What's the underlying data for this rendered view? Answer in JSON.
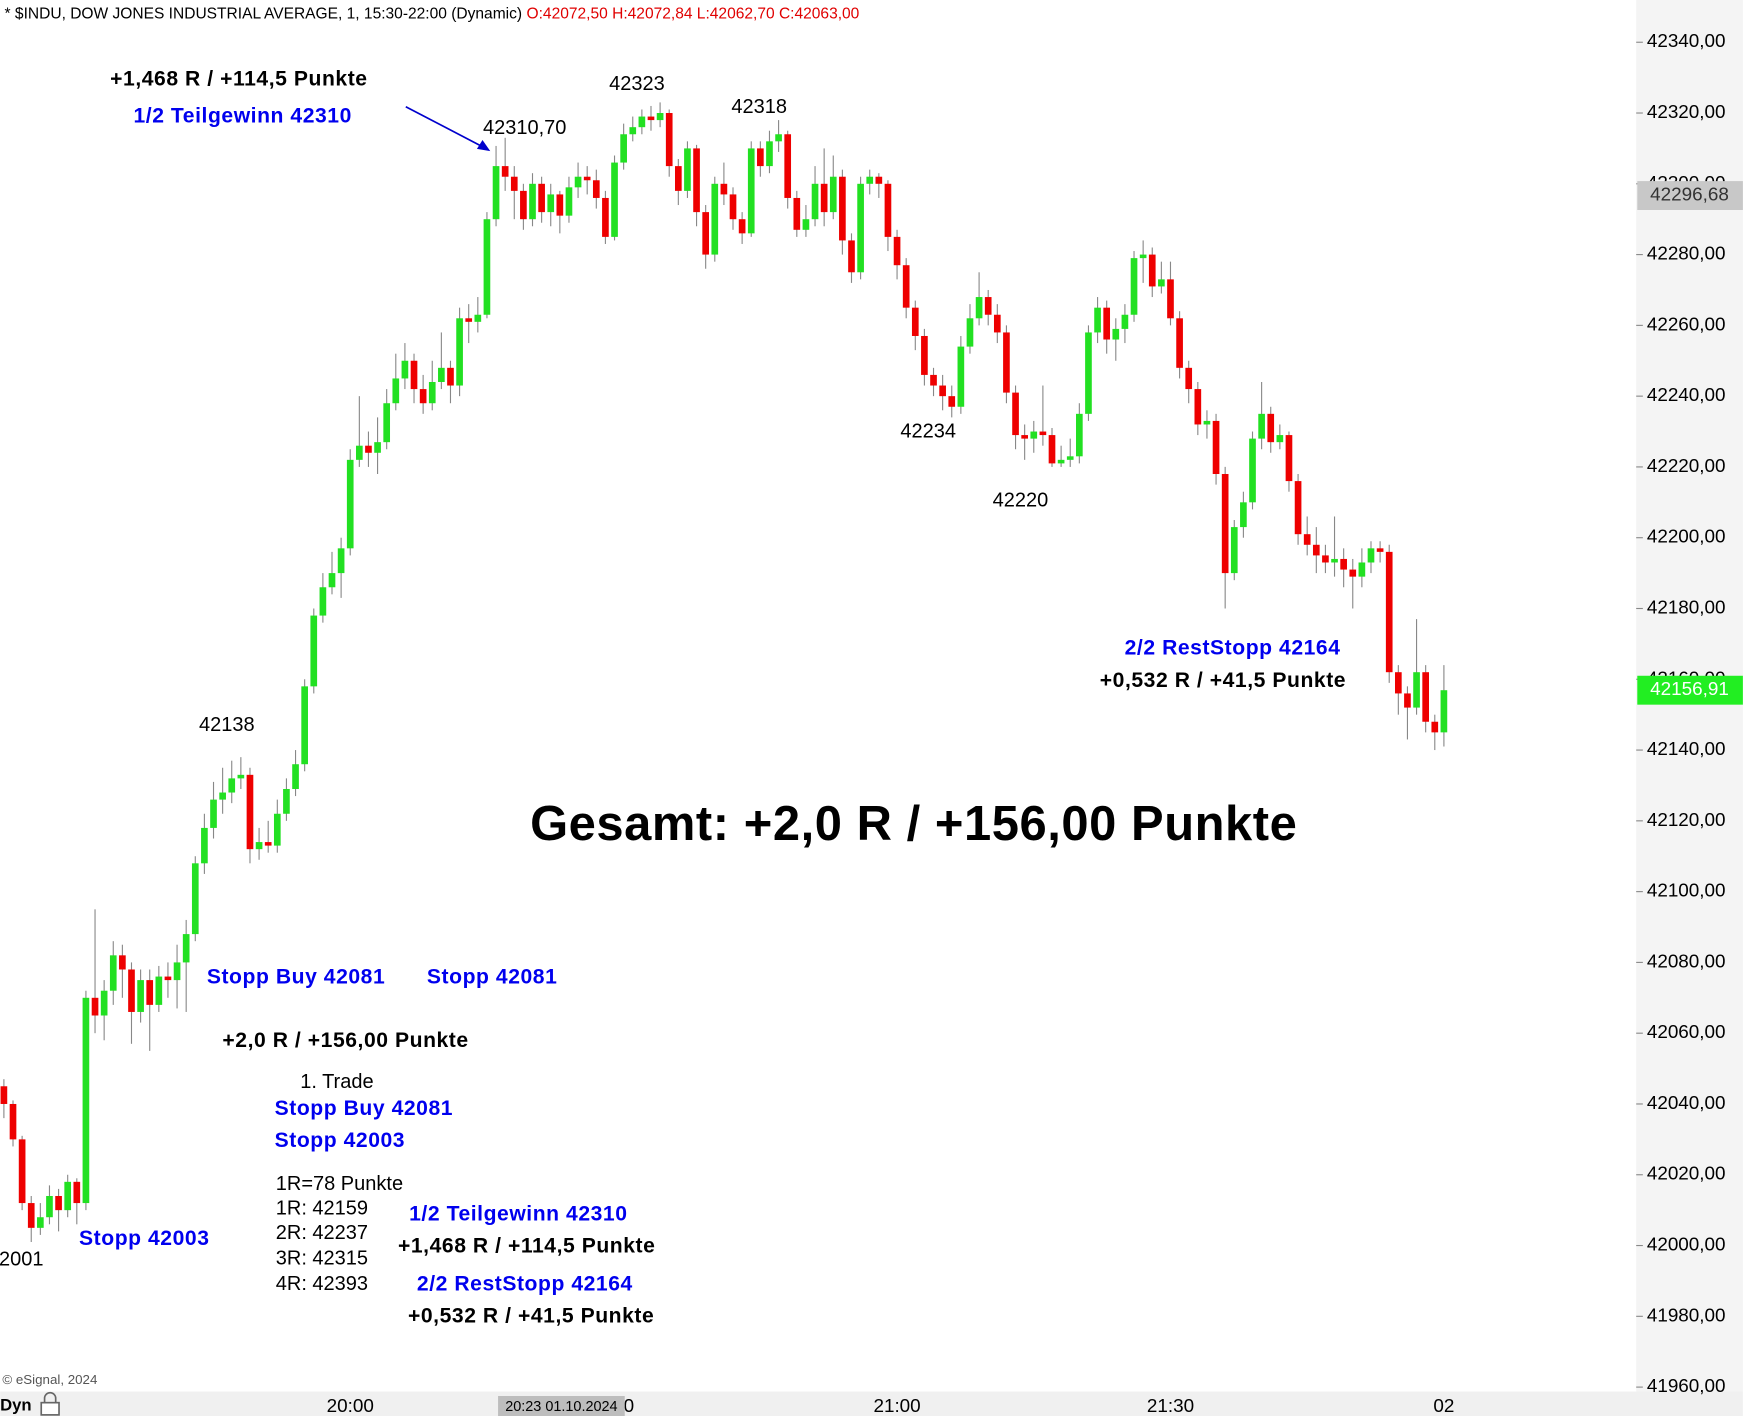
{
  "chart_data": {
    "type": "candlestick",
    "title": "* $INDU, DOW JONES INDUSTRIAL AVERAGE, 1, 15:30-22:00 (Dynamic)",
    "ohlc_label": "O:42072,50 H:42072,84 L:42062,70 C:42063,00",
    "up_color": "#22e022",
    "down_color": "#ee0000",
    "ylim": [
      41960,
      42340
    ],
    "yticks": [
      {
        "value": 42340,
        "label": "42340,00"
      },
      {
        "value": 42320,
        "label": "42320,00"
      },
      {
        "value": 42300,
        "label": "42300,00"
      },
      {
        "value": 42280,
        "label": "42280,00"
      },
      {
        "value": 42260,
        "label": "42260,00"
      },
      {
        "value": 42240,
        "label": "42240,00"
      },
      {
        "value": 42220,
        "label": "42220,00"
      },
      {
        "value": 42200,
        "label": "42200,00"
      },
      {
        "value": 42180,
        "label": "42180,00"
      },
      {
        "value": 42160,
        "label": "42160,00"
      },
      {
        "value": 42140,
        "label": "42140,00"
      },
      {
        "value": 42120,
        "label": "42120,00"
      },
      {
        "value": 42100,
        "label": "42100,00"
      },
      {
        "value": 42080,
        "label": "42080,00"
      },
      {
        "value": 42060,
        "label": "42060,00"
      },
      {
        "value": 42040,
        "label": "42040,00"
      },
      {
        "value": 42020,
        "label": "42020,00"
      },
      {
        "value": 42000,
        "label": "42000,00"
      },
      {
        "value": 41980,
        "label": "41980,00"
      },
      {
        "value": 41960,
        "label": "41960,00"
      }
    ],
    "categories": [
      null,
      null,
      null,
      null,
      null,
      null,
      null,
      null,
      null,
      null,
      null,
      null,
      null,
      null,
      null,
      null,
      null,
      null,
      null,
      null,
      null,
      null,
      null,
      null,
      null,
      null,
      null,
      null,
      null,
      null,
      null,
      null,
      null,
      null,
      null,
      null,
      null,
      null,
      "20:00",
      null,
      null,
      null,
      null,
      null,
      null,
      null,
      null,
      null,
      null,
      null,
      null,
      null,
      null,
      null,
      null,
      null,
      null,
      null,
      null,
      null,
      null,
      null,
      null,
      null,
      null,
      null,
      null,
      null,
      "30",
      null,
      null,
      null,
      null,
      null,
      null,
      null,
      null,
      null,
      null,
      null,
      null,
      null,
      null,
      null,
      null,
      null,
      null,
      null,
      null,
      null,
      null,
      null,
      null,
      null,
      null,
      null,
      null,
      null,
      "21:00",
      null,
      null,
      null,
      null,
      null,
      null,
      null,
      null,
      null,
      null,
      null,
      null,
      null,
      null,
      null,
      null,
      null,
      null,
      null,
      null,
      null,
      null,
      null,
      null,
      null,
      null,
      null,
      null,
      null,
      "21:30",
      null,
      null,
      null,
      null,
      null,
      null,
      null,
      null,
      null,
      null,
      null,
      null,
      null,
      null,
      null,
      null,
      null,
      null,
      null,
      null,
      null,
      null,
      null,
      null,
      null,
      null,
      null,
      null,
      null,
      "02"
    ],
    "open": [
      42045,
      42040,
      42030,
      42012,
      42005,
      42008,
      42014,
      42010,
      42018,
      42012,
      42070,
      42065,
      42072,
      42082,
      42078,
      42066,
      42075,
      42068,
      42076,
      42075,
      42080,
      42088,
      42108,
      42118,
      42126,
      42128,
      42132,
      42133,
      42112,
      42114,
      42113,
      42122,
      42129,
      42136,
      42158,
      42178,
      42186,
      42190,
      42197,
      42222,
      42226,
      42224,
      42227,
      42238,
      42245,
      42250,
      42242,
      42238,
      42244,
      42248,
      42243,
      42262,
      42261,
      42263,
      42290,
      42305,
      42302,
      42298,
      42290,
      42300,
      42292,
      42297,
      42291,
      42299,
      42302,
      42301,
      42296,
      42285,
      42306,
      42314,
      42316,
      42319,
      42318,
      42320,
      42305,
      42298,
      42310,
      42292,
      42280,
      42300,
      42297,
      42290,
      42286,
      42310,
      42305,
      42312,
      42314,
      42296,
      42287,
      42290,
      42300,
      42292,
      42302,
      42284,
      42275,
      42300,
      42302,
      42300,
      42285,
      42277,
      42265,
      42257,
      42246,
      42243,
      42240,
      42237,
      42254,
      42262,
      42268,
      42263,
      42258,
      42241,
      42229,
      42228,
      42230,
      42229,
      42221,
      42222,
      42223,
      42235,
      42258,
      42265,
      42256,
      42259,
      42263,
      42279,
      42280,
      42271,
      42273,
      42262,
      42248,
      42242,
      42232,
      42233,
      42218,
      42190,
      42203,
      42210,
      42228,
      42235,
      42227,
      42229,
      42216,
      42201,
      42198,
      42195,
      42193,
      42194,
      42191,
      42189,
      42193,
      42197,
      42196,
      42162,
      42156,
      42152,
      42162,
      42148,
      42145
    ],
    "high": [
      42047,
      42041,
      42031,
      42014,
      42012,
      42017,
      42016,
      42020,
      42019,
      42072,
      42095,
      42075,
      42086,
      42085,
      42080,
      42078,
      42078,
      42079,
      42080,
      42085,
      42092,
      42110,
      42122,
      42131,
      42135,
      42137,
      42138,
      42135,
      42118,
      42120,
      42126,
      42132,
      42140,
      42160,
      42180,
      42190,
      42196,
      42200,
      42225,
      42240,
      42230,
      42234,
      42242,
      42252,
      42255,
      42252,
      42246,
      42250,
      42258,
      42250,
      42265,
      42266,
      42268,
      42292,
      42310.7,
      42313,
      42305,
      42300,
      42303,
      42302,
      42300,
      42298,
      42302,
      42306,
      42305,
      42304,
      42298,
      42308,
      42317,
      42319,
      42321,
      42322,
      42323,
      42321,
      42307,
      42312,
      42311,
      42294,
      42302,
      42306,
      42299,
      42292,
      42312,
      42312,
      42315,
      42318,
      42315,
      42298,
      42294,
      42305,
      42310,
      42308,
      42304,
      42286,
      42302,
      42304,
      42303,
      42301,
      42287,
      42279,
      42267,
      42259,
      42248,
      42246,
      42243,
      42257,
      42266,
      42275,
      42270,
      42266,
      42260,
      42243,
      42232,
      42233,
      42243,
      42231,
      42226,
      42228,
      42238,
      42260,
      42268,
      42267,
      42262,
      42266,
      42281,
      42284,
      42282,
      42278,
      42278,
      42264,
      42250,
      42244,
      42236,
      42235,
      42220,
      42205,
      42213,
      42230,
      42244,
      42237,
      42232,
      42230,
      42218,
      42206,
      42203,
      42198,
      42206,
      42197,
      42194,
      42197,
      42199,
      42199,
      42198,
      42164,
      42158,
      42177,
      42164,
      42150,
      42164
    ],
    "low": [
      42036,
      42028,
      42010,
      42001,
      42003,
      42006,
      42004,
      42008,
      42006,
      42010,
      42060,
      42058,
      42068,
      42070,
      42057,
      42063,
      42055,
      42066,
      42070,
      42067,
      42066,
      42086,
      42105,
      42115,
      42122,
      42125,
      42129,
      42108,
      42109,
      42111,
      42111,
      42120,
      42127,
      42134,
      42156,
      42176,
      42184,
      42183,
      42195,
      42220,
      42220,
      42218,
      42225,
      42236,
      42242,
      42238,
      42235,
      42236,
      42242,
      42238,
      42240,
      42255,
      42258,
      42262,
      42288,
      42298,
      42290,
      42287,
      42288,
      42289,
      42288,
      42286,
      42289,
      42296,
      42297,
      42293,
      42283,
      42284,
      42304,
      42312,
      42314,
      42315,
      42316,
      42302,
      42294,
      42296,
      42288,
      42276,
      42278,
      42294,
      42287,
      42283,
      42285,
      42302,
      42303,
      42309,
      42293,
      42285,
      42285,
      42288,
      42288,
      42290,
      42280,
      42272,
      42273,
      42297,
      42296,
      42281,
      42273,
      42262,
      42253,
      42243,
      42240,
      42236,
      42234,
      42235,
      42252,
      42260,
      42260,
      42255,
      42238,
      42225,
      42222,
      42224,
      42226,
      42220,
      42220,
      42220,
      42221,
      42233,
      42255,
      42252,
      42250,
      42255,
      42261,
      42272,
      42268,
      42269,
      42260,
      42245,
      42238,
      42229,
      42228,
      42215,
      42180,
      42188,
      42200,
      42208,
      42225,
      42224,
      42225,
      42213,
      42198,
      42195,
      42190,
      42190,
      42189,
      42186,
      42180,
      42186,
      42190,
      42193,
      42159,
      42150,
      42143,
      42150,
      42145,
      42140,
      42141
    ],
    "close": [
      42040,
      42030,
      42012,
      42005,
      42008,
      42014,
      42010,
      42018,
      42012,
      42070,
      42065,
      42072,
      42082,
      42078,
      42066,
      42075,
      42068,
      42076,
      42075,
      42080,
      42088,
      42108,
      42118,
      42126,
      42128,
      42132,
      42133,
      42112,
      42114,
      42113,
      42122,
      42129,
      42136,
      42158,
      42178,
      42186,
      42190,
      42197,
      42222,
      42226,
      42224,
      42227,
      42238,
      42245,
      42250,
      42242,
      42238,
      42244,
      42248,
      42243,
      42262,
      42261,
      42263,
      42290,
      42305,
      42302,
      42298,
      42290,
      42300,
      42292,
      42297,
      42291,
      42299,
      42302,
      42301,
      42296,
      42285,
      42306,
      42314,
      42316,
      42319,
      42318,
      42320,
      42305,
      42298,
      42310,
      42292,
      42280,
      42300,
      42297,
      42290,
      42286,
      42310,
      42305,
      42312,
      42314,
      42296,
      42287,
      42290,
      42300,
      42292,
      42302,
      42284,
      42275,
      42300,
      42302,
      42300,
      42285,
      42277,
      42265,
      42257,
      42246,
      42243,
      42240,
      42237,
      42254,
      42262,
      42268,
      42263,
      42258,
      42241,
      42229,
      42228,
      42230,
      42229,
      42221,
      42222,
      42223,
      42235,
      42258,
      42265,
      42256,
      42259,
      42263,
      42279,
      42280,
      42271,
      42273,
      42262,
      42248,
      42242,
      42232,
      42233,
      42218,
      42190,
      42203,
      42210,
      42228,
      42235,
      42227,
      42229,
      42216,
      42201,
      42198,
      42195,
      42193,
      42194,
      42191,
      42189,
      42193,
      42197,
      42196,
      42162,
      42156,
      42152,
      42162,
      42148,
      42145,
      42156.91
    ],
    "price_markers": [
      {
        "value": 42296.68,
        "label": "42296,68",
        "color": "#c8c8c8"
      },
      {
        "value": 42156.91,
        "label": "42156,91",
        "color": "#22ee22"
      }
    ],
    "crosshair_label": "20:23 01.10.2024",
    "annotations": [
      {
        "text": "+1,468 R / +114,5 Punkte",
        "color": "#000000"
      },
      {
        "text": "1/2 Teilgewinn 42310",
        "color": "#0000ee"
      },
      {
        "text": "42310,70",
        "color": "#000000"
      },
      {
        "text": "42323",
        "color": "#000000"
      },
      {
        "text": "42318",
        "color": "#000000"
      },
      {
        "text": "42138",
        "color": "#000000"
      },
      {
        "text": "42234",
        "color": "#000000"
      },
      {
        "text": "42220",
        "color": "#000000"
      },
      {
        "text": "2/2 RestStopp 42164",
        "color": "#0000ee"
      },
      {
        "text": "+0,532 R / +41,5 Punkte",
        "color": "#000000"
      },
      {
        "text": "Gesamt: +2,0 R / +156,00 Punkte",
        "color": "#000000"
      },
      {
        "text": "Stopp Buy 42081",
        "color": "#0000ee"
      },
      {
        "text": "Stopp 42081",
        "color": "#0000ee"
      },
      {
        "text": "+2,0 R / +156,00 Punkte",
        "color": "#000000"
      },
      {
        "text": "1. Trade",
        "color": "#000000"
      },
      {
        "text": "Stopp Buy 42081",
        "color": "#0000ee"
      },
      {
        "text": "Stopp 42003",
        "color": "#0000ee"
      },
      {
        "text": "1R=78 Punkte",
        "color": "#000000"
      },
      {
        "text": "1R: 42159",
        "color": "#000000"
      },
      {
        "text": "2R: 42237",
        "color": "#000000"
      },
      {
        "text": "3R: 42315",
        "color": "#000000"
      },
      {
        "text": "4R: 42393",
        "color": "#000000"
      },
      {
        "text": "1/2 Teilgewinn 42310",
        "color": "#0000ee"
      },
      {
        "text": "+1,468 R / +114,5 Punkte",
        "color": "#000000"
      },
      {
        "text": "2/2 RestStopp 42164",
        "color": "#0000ee"
      },
      {
        "text": "+0,532 R / +41,5 Punkte",
        "color": "#000000"
      },
      {
        "text": "Stopp 42003",
        "color": "#0000ee"
      },
      {
        "text": "2001",
        "color": "#000000"
      }
    ],
    "copyright": "© eSignal, 2024",
    "footer_label": "Dyn"
  }
}
